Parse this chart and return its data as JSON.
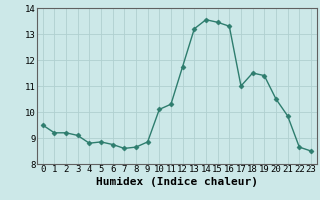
{
  "x": [
    0,
    1,
    2,
    3,
    4,
    5,
    6,
    7,
    8,
    9,
    10,
    11,
    12,
    13,
    14,
    15,
    16,
    17,
    18,
    19,
    20,
    21,
    22,
    23
  ],
  "y": [
    9.5,
    9.2,
    9.2,
    9.1,
    8.8,
    8.85,
    8.75,
    8.6,
    8.65,
    8.85,
    10.1,
    10.3,
    11.75,
    13.2,
    13.55,
    13.45,
    13.3,
    11.0,
    11.5,
    11.4,
    10.5,
    9.85,
    8.65,
    8.5
  ],
  "line_color": "#2e7d6e",
  "marker": "D",
  "marker_size": 2.5,
  "bg_color": "#cce8e8",
  "grid_color": "#b0d0d0",
  "xlabel": "Humidex (Indice chaleur)",
  "ylim": [
    8,
    14
  ],
  "xlim": [
    -0.5,
    23.5
  ],
  "yticks": [
    8,
    9,
    10,
    11,
    12,
    13,
    14
  ],
  "xticks": [
    0,
    1,
    2,
    3,
    4,
    5,
    6,
    7,
    8,
    9,
    10,
    11,
    12,
    13,
    14,
    15,
    16,
    17,
    18,
    19,
    20,
    21,
    22,
    23
  ],
  "tick_fontsize": 6.5,
  "xlabel_fontsize": 8,
  "line_width": 1.0
}
